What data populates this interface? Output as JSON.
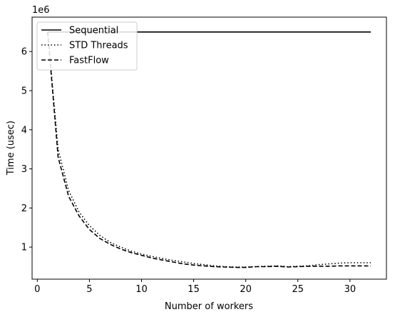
{
  "chart_data": {
    "type": "line",
    "title": "",
    "xlabel": "Number of workers",
    "ylabel": "Time (usec)",
    "y_offset_label": "1e6",
    "xlim": [
      0,
      32
    ],
    "ylim": [
      0,
      6.8
    ],
    "y_scale_note": "values in units of 1e6 usec",
    "x_ticks": [
      0,
      5,
      10,
      15,
      20,
      25,
      30
    ],
    "y_ticks": [
      1,
      2,
      3,
      4,
      5,
      6
    ],
    "grid": false,
    "legend_position": "top-left",
    "x": [
      1,
      2,
      3,
      4,
      5,
      6,
      7,
      8,
      9,
      10,
      11,
      12,
      13,
      14,
      15,
      16,
      17,
      18,
      19,
      20,
      21,
      22,
      23,
      24,
      25,
      26,
      27,
      28,
      29,
      30,
      31,
      32
    ],
    "series": [
      {
        "name": "Sequential",
        "style": "solid",
        "values": [
          6.5,
          6.5,
          6.5,
          6.5,
          6.5,
          6.5,
          6.5,
          6.5,
          6.5,
          6.5,
          6.5,
          6.5,
          6.5,
          6.5,
          6.5,
          6.5,
          6.5,
          6.5,
          6.5,
          6.5,
          6.5,
          6.5,
          6.5,
          6.5,
          6.5,
          6.5,
          6.5,
          6.5,
          6.5,
          6.5,
          6.5,
          6.5
        ]
      },
      {
        "name": "STD Threads",
        "style": "dotted",
        "values": [
          6.5,
          3.5,
          2.45,
          1.9,
          1.55,
          1.3,
          1.12,
          1.0,
          0.9,
          0.82,
          0.76,
          0.71,
          0.66,
          0.62,
          0.58,
          0.55,
          0.52,
          0.5,
          0.49,
          0.49,
          0.5,
          0.51,
          0.52,
          0.5,
          0.51,
          0.52,
          0.55,
          0.57,
          0.59,
          0.6,
          0.6,
          0.6
        ]
      },
      {
        "name": "FastFlow",
        "style": "dashed",
        "values": [
          6.5,
          3.3,
          2.3,
          1.8,
          1.45,
          1.22,
          1.07,
          0.95,
          0.86,
          0.79,
          0.72,
          0.67,
          0.62,
          0.57,
          0.54,
          0.52,
          0.5,
          0.49,
          0.48,
          0.48,
          0.5,
          0.5,
          0.51,
          0.49,
          0.5,
          0.51,
          0.51,
          0.51,
          0.52,
          0.52,
          0.52,
          0.52
        ]
      }
    ]
  }
}
